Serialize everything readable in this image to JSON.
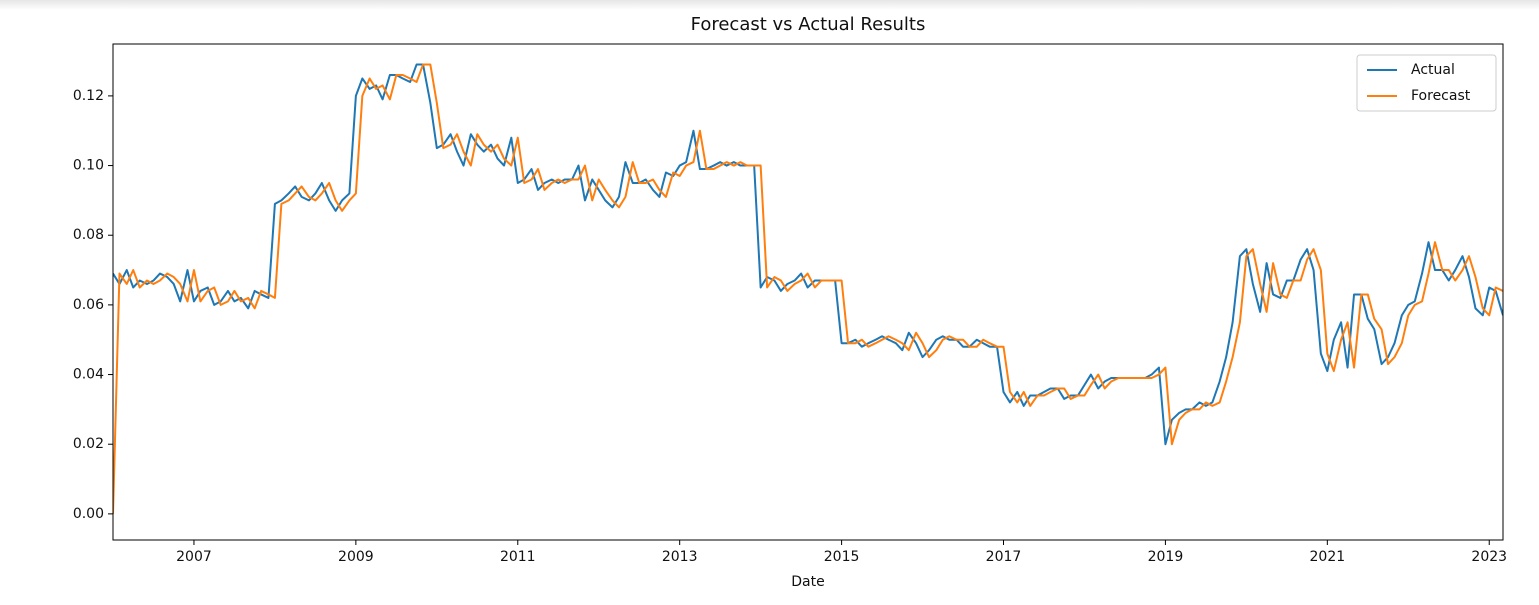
{
  "chart_data": {
    "type": "line",
    "title": "Forecast vs Actual Results",
    "x_label": "Date",
    "x": [
      2006.0,
      2006.08,
      2006.17,
      2006.25,
      2006.33,
      2006.42,
      2006.5,
      2006.58,
      2006.67,
      2006.75,
      2006.83,
      2006.92,
      2007.0,
      2007.08,
      2007.17,
      2007.25,
      2007.33,
      2007.42,
      2007.5,
      2007.58,
      2007.67,
      2007.75,
      2007.83,
      2007.92,
      2008.0,
      2008.08,
      2008.17,
      2008.25,
      2008.33,
      2008.42,
      2008.5,
      2008.58,
      2008.67,
      2008.75,
      2008.83,
      2008.92,
      2009.0,
      2009.08,
      2009.17,
      2009.25,
      2009.33,
      2009.42,
      2009.5,
      2009.58,
      2009.67,
      2009.75,
      2009.83,
      2009.92,
      2010.0,
      2010.08,
      2010.17,
      2010.25,
      2010.33,
      2010.42,
      2010.5,
      2010.58,
      2010.67,
      2010.75,
      2010.83,
      2010.92,
      2011.0,
      2011.08,
      2011.17,
      2011.25,
      2011.33,
      2011.42,
      2011.5,
      2011.58,
      2011.67,
      2011.75,
      2011.83,
      2011.92,
      2012.0,
      2012.08,
      2012.17,
      2012.25,
      2012.33,
      2012.42,
      2012.5,
      2012.58,
      2012.67,
      2012.75,
      2012.83,
      2012.92,
      2013.0,
      2013.08,
      2013.17,
      2013.25,
      2013.33,
      2013.42,
      2013.5,
      2013.58,
      2013.67,
      2013.75,
      2013.83,
      2013.92,
      2014.0,
      2014.08,
      2014.17,
      2014.25,
      2014.33,
      2014.42,
      2014.5,
      2014.58,
      2014.67,
      2014.75,
      2014.83,
      2014.92,
      2015.0,
      2015.08,
      2015.17,
      2015.25,
      2015.33,
      2015.42,
      2015.5,
      2015.58,
      2015.67,
      2015.75,
      2015.83,
      2015.92,
      2016.0,
      2016.08,
      2016.17,
      2016.25,
      2016.33,
      2016.42,
      2016.5,
      2016.58,
      2016.67,
      2016.75,
      2016.83,
      2016.92,
      2017.0,
      2017.08,
      2017.17,
      2017.25,
      2017.33,
      2017.42,
      2017.5,
      2017.58,
      2017.67,
      2017.75,
      2017.83,
      2017.92,
      2018.0,
      2018.08,
      2018.17,
      2018.25,
      2018.33,
      2018.42,
      2018.5,
      2018.58,
      2018.67,
      2018.75,
      2018.83,
      2018.92,
      2019.0,
      2019.08,
      2019.17,
      2019.25,
      2019.33,
      2019.42,
      2019.5,
      2019.58,
      2019.67,
      2019.75,
      2019.83,
      2019.92,
      2020.0,
      2020.08,
      2020.17,
      2020.25,
      2020.33,
      2020.42,
      2020.5,
      2020.58,
      2020.67,
      2020.75,
      2020.83,
      2020.92,
      2021.0,
      2021.08,
      2021.17,
      2021.25,
      2021.33,
      2021.42,
      2021.5,
      2021.58,
      2021.67,
      2021.75,
      2021.83,
      2021.92,
      2022.0,
      2022.08,
      2022.17,
      2022.25,
      2022.33,
      2022.42,
      2022.5,
      2022.58,
      2022.67,
      2022.75,
      2022.83,
      2022.92,
      2023.0,
      2023.08,
      2023.17
    ],
    "series": [
      {
        "name": "Actual",
        "color": "#1f77b4",
        "values": [
          0.069,
          0.066,
          0.07,
          0.065,
          0.067,
          0.066,
          0.067,
          0.069,
          0.068,
          0.066,
          0.061,
          0.07,
          0.061,
          0.064,
          0.065,
          0.06,
          0.061,
          0.064,
          0.061,
          0.062,
          0.059,
          0.064,
          0.063,
          0.062,
          0.089,
          0.09,
          0.092,
          0.094,
          0.091,
          0.09,
          0.092,
          0.095,
          0.09,
          0.087,
          0.09,
          0.092,
          0.12,
          0.125,
          0.122,
          0.123,
          0.119,
          0.126,
          0.126,
          0.125,
          0.124,
          0.129,
          0.129,
          0.118,
          0.105,
          0.106,
          0.109,
          0.104,
          0.1,
          0.109,
          0.106,
          0.104,
          0.106,
          0.102,
          0.1,
          0.108,
          0.095,
          0.096,
          0.099,
          0.093,
          0.095,
          0.096,
          0.095,
          0.096,
          0.096,
          0.1,
          0.09,
          0.096,
          0.093,
          0.09,
          0.088,
          0.091,
          0.101,
          0.095,
          0.095,
          0.096,
          0.093,
          0.091,
          0.098,
          0.097,
          0.1,
          0.101,
          0.11,
          0.099,
          0.099,
          0.1,
          0.101,
          0.1,
          0.101,
          0.1,
          0.1,
          0.1,
          0.065,
          0.068,
          0.067,
          0.064,
          0.066,
          0.067,
          0.069,
          0.065,
          0.067,
          0.067,
          0.067,
          0.067,
          0.049,
          0.049,
          0.05,
          0.048,
          0.049,
          0.05,
          0.051,
          0.05,
          0.049,
          0.047,
          0.052,
          0.049,
          0.045,
          0.047,
          0.05,
          0.051,
          0.05,
          0.05,
          0.048,
          0.048,
          0.05,
          0.049,
          0.048,
          0.048,
          0.035,
          0.032,
          0.035,
          0.031,
          0.034,
          0.034,
          0.035,
          0.036,
          0.036,
          0.033,
          0.034,
          0.034,
          0.037,
          0.04,
          0.036,
          0.038,
          0.039,
          0.039,
          0.039,
          0.039,
          0.039,
          0.039,
          0.04,
          0.042,
          0.02,
          0.027,
          0.029,
          0.03,
          0.03,
          0.032,
          0.031,
          0.032,
          0.038,
          0.045,
          0.055,
          0.074,
          0.076,
          0.066,
          0.058,
          0.072,
          0.063,
          0.062,
          0.067,
          0.067,
          0.073,
          0.076,
          0.07,
          0.046,
          0.041,
          0.05,
          0.055,
          0.042,
          0.063,
          0.063,
          0.056,
          0.053,
          0.043,
          0.045,
          0.049,
          0.057,
          0.06,
          0.061,
          0.069,
          0.078,
          0.07,
          0.07,
          0.067,
          0.07,
          0.074,
          0.068,
          0.059,
          0.057,
          0.065,
          0.064,
          0.057
        ]
      },
      {
        "name": "Forecast",
        "color": "#ff7f0e",
        "values": [
          0,
          0.069,
          0.066,
          0.07,
          0.065,
          0.067,
          0.066,
          0.067,
          0.069,
          0.068,
          0.066,
          0.061,
          0.07,
          0.061,
          0.064,
          0.065,
          0.06,
          0.061,
          0.064,
          0.061,
          0.062,
          0.059,
          0.064,
          0.063,
          0.062,
          0.089,
          0.09,
          0.092,
          0.094,
          0.091,
          0.09,
          0.092,
          0.095,
          0.09,
          0.087,
          0.09,
          0.092,
          0.12,
          0.125,
          0.122,
          0.123,
          0.119,
          0.126,
          0.126,
          0.125,
          0.124,
          0.129,
          0.129,
          0.118,
          0.105,
          0.106,
          0.109,
          0.104,
          0.1,
          0.109,
          0.106,
          0.104,
          0.106,
          0.102,
          0.1,
          0.108,
          0.095,
          0.096,
          0.099,
          0.093,
          0.095,
          0.096,
          0.095,
          0.096,
          0.096,
          0.1,
          0.09,
          0.096,
          0.093,
          0.09,
          0.088,
          0.091,
          0.101,
          0.095,
          0.095,
          0.096,
          0.093,
          0.091,
          0.098,
          0.097,
          0.1,
          0.101,
          0.11,
          0.099,
          0.099,
          0.1,
          0.101,
          0.1,
          0.101,
          0.1,
          0.1,
          0.1,
          0.065,
          0.068,
          0.067,
          0.064,
          0.066,
          0.067,
          0.069,
          0.065,
          0.067,
          0.067,
          0.067,
          0.067,
          0.049,
          0.049,
          0.05,
          0.048,
          0.049,
          0.05,
          0.051,
          0.05,
          0.049,
          0.047,
          0.052,
          0.049,
          0.045,
          0.047,
          0.05,
          0.051,
          0.05,
          0.05,
          0.048,
          0.048,
          0.05,
          0.049,
          0.048,
          0.048,
          0.035,
          0.032,
          0.035,
          0.031,
          0.034,
          0.034,
          0.035,
          0.036,
          0.036,
          0.033,
          0.034,
          0.034,
          0.037,
          0.04,
          0.036,
          0.038,
          0.039,
          0.039,
          0.039,
          0.039,
          0.039,
          0.039,
          0.04,
          0.042,
          0.02,
          0.027,
          0.029,
          0.03,
          0.03,
          0.032,
          0.031,
          0.032,
          0.038,
          0.045,
          0.055,
          0.074,
          0.076,
          0.066,
          0.058,
          0.072,
          0.063,
          0.062,
          0.067,
          0.067,
          0.073,
          0.076,
          0.07,
          0.046,
          0.041,
          0.05,
          0.055,
          0.042,
          0.063,
          0.063,
          0.056,
          0.053,
          0.043,
          0.045,
          0.049,
          0.057,
          0.06,
          0.061,
          0.069,
          0.078,
          0.07,
          0.07,
          0.067,
          0.07,
          0.074,
          0.068,
          0.059,
          0.057,
          0.065,
          0.064
        ]
      }
    ],
    "xlim": [
      2006.0,
      2023.17
    ],
    "xticks": [
      2007,
      2009,
      2011,
      2013,
      2015,
      2017,
      2019,
      2021,
      2023
    ],
    "ylim": [
      -0.0075,
      0.1349
    ],
    "yticks": [
      {
        "value": 0,
        "label": "0.00"
      },
      0.02,
      0.04,
      0.06,
      0.08,
      {
        "value": 0.1,
        "label": "0.10"
      },
      0.12
    ],
    "grid": false,
    "legend": "upper right"
  }
}
